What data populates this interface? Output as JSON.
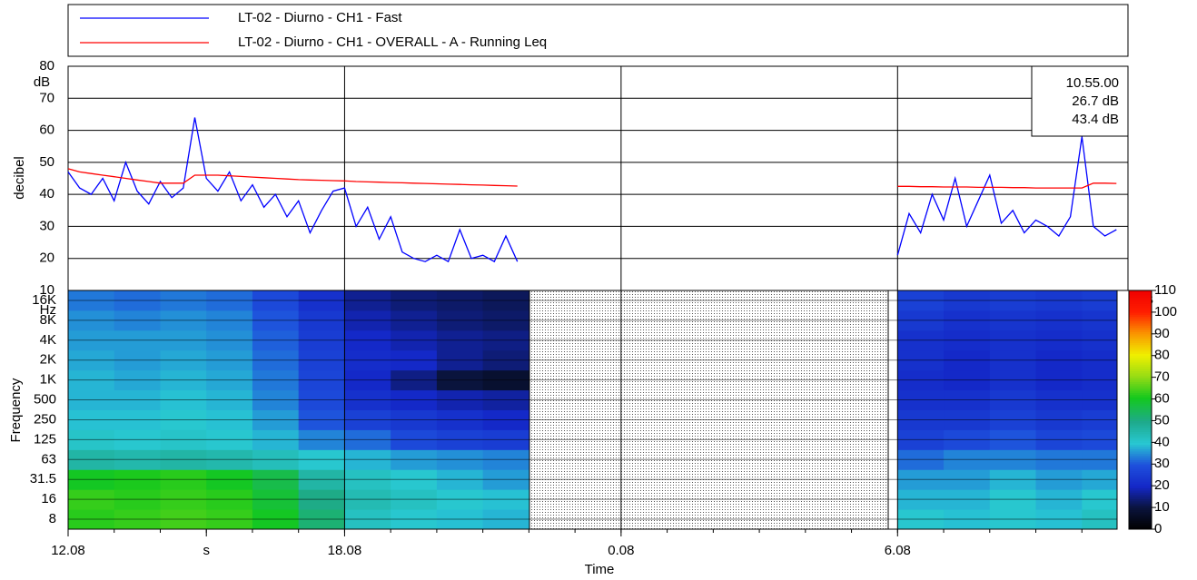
{
  "chart_data": {
    "type": "line",
    "readout": [
      "10.55.00",
      "26.7 dB",
      "43.4 dB"
    ],
    "y_label": "decibel",
    "y_unit": "dB",
    "x_label": "Time",
    "xlim": [
      0,
      23
    ],
    "xticks": [
      {
        "value": 0,
        "label": "12.08"
      },
      {
        "value": 3,
        "label": "s"
      },
      {
        "value": 6,
        "label": "18.08"
      },
      {
        "value": 12,
        "label": "0.08"
      },
      {
        "value": 18,
        "label": "6.08"
      }
    ],
    "ylim": [
      10,
      80
    ],
    "yticks": [
      10,
      20,
      30,
      40,
      50,
      60,
      70,
      80
    ],
    "grid": true,
    "x": [
      0,
      0.25,
      0.5,
      0.75,
      1,
      1.25,
      1.5,
      1.75,
      2,
      2.25,
      2.5,
      2.75,
      3,
      3.25,
      3.5,
      3.75,
      4,
      4.25,
      4.5,
      4.75,
      5,
      5.25,
      5.5,
      5.75,
      6,
      6.25,
      6.5,
      6.75,
      7,
      7.25,
      7.5,
      7.75,
      8,
      8.25,
      8.5,
      8.75,
      9,
      9.25,
      9.5,
      9.75,
      10,
      18,
      18.25,
      18.5,
      18.75,
      19,
      19.25,
      19.5,
      19.75,
      20,
      20.25,
      20.5,
      20.75,
      21,
      21.25,
      21.5,
      21.75,
      22,
      22.25,
      22.5,
      22.75
    ],
    "series": [
      {
        "name": "LT-02 - Diurno - CH1 - Fast",
        "color": "#0000ff",
        "values": [
          47,
          42,
          40,
          45,
          38,
          50,
          41,
          37,
          44,
          39,
          42,
          64,
          45,
          41,
          47,
          38,
          43,
          36,
          40,
          33,
          38,
          28,
          35,
          41,
          42,
          30,
          36,
          26,
          33,
          22,
          20,
          19,
          21,
          19,
          29,
          20,
          21,
          19,
          27,
          19,
          null,
          21,
          34,
          28,
          40,
          32,
          45,
          30,
          38,
          46,
          31,
          35,
          28,
          32,
          30,
          27,
          33,
          58,
          30,
          27,
          29
        ]
      },
      {
        "name": "LT-02 - Diurno - CH1 - OVERALL - A - Running Leq",
        "color": "#ff0000",
        "values": [
          48,
          47,
          46.5,
          46,
          45.5,
          45,
          44.5,
          44,
          43.5,
          43.5,
          43.5,
          46,
          46,
          46,
          45.8,
          45.6,
          45.4,
          45.2,
          45,
          44.8,
          44.6,
          44.5,
          44.4,
          44.3,
          44.2,
          44,
          43.9,
          43.8,
          43.7,
          43.6,
          43.5,
          43.4,
          43.3,
          43.2,
          43.1,
          43,
          42.9,
          42.8,
          42.7,
          42.6,
          null,
          42.5,
          42.5,
          42.4,
          42.4,
          42.3,
          42.3,
          42.3,
          42.2,
          42.2,
          42.2,
          42.1,
          42.1,
          42,
          42,
          42,
          42,
          42,
          43.5,
          43.5,
          43.4
        ]
      }
    ],
    "spectrogram": {
      "y_label": "Frequency",
      "y_unit": "Hz",
      "bands": [
        "8",
        "16",
        "31.5",
        "63",
        "125",
        "250",
        "500",
        "1K",
        "2K",
        "4K",
        "8K",
        "16K"
      ],
      "times": [
        0,
        1,
        2,
        3,
        4,
        5,
        6,
        7,
        8,
        9,
        18,
        19,
        20,
        21,
        22
      ],
      "levels": [
        [
          62,
          63,
          60,
          46,
          41,
          39,
          38,
          38,
          37,
          36,
          35,
          33
        ],
        [
          63,
          62,
          61,
          45,
          40,
          39,
          38,
          37,
          36,
          36,
          34,
          32
        ],
        [
          64,
          63,
          62,
          46,
          41,
          40,
          39,
          38,
          37,
          36,
          35,
          33
        ],
        [
          63,
          62,
          60,
          45,
          40,
          39,
          38,
          37,
          36,
          35,
          34,
          32
        ],
        [
          60,
          58,
          56,
          43,
          38,
          36,
          34,
          33,
          32,
          31,
          30,
          28
        ],
        [
          52,
          50,
          46,
          40,
          34,
          30,
          28,
          27,
          26,
          25,
          24,
          22
        ],
        [
          42,
          44,
          42,
          38,
          32,
          26,
          22,
          20,
          21,
          20,
          18,
          16
        ],
        [
          40,
          42,
          40,
          36,
          28,
          24,
          20,
          15,
          20,
          18,
          16,
          14
        ],
        [
          39,
          40,
          38,
          35,
          26,
          22,
          18,
          10,
          16,
          16,
          14,
          13
        ],
        [
          38,
          39,
          36,
          34,
          25,
          20,
          17,
          8,
          14,
          15,
          13,
          12
        ],
        [
          40,
          38,
          36,
          32,
          26,
          24,
          22,
          21,
          22,
          22,
          24,
          26
        ],
        [
          39,
          38,
          36,
          34,
          28,
          24,
          22,
          20,
          20,
          21,
          22,
          24
        ],
        [
          40,
          40,
          38,
          34,
          30,
          26,
          24,
          22,
          22,
          22,
          23,
          25
        ],
        [
          39,
          38,
          36,
          33,
          27,
          24,
          22,
          20,
          20,
          21,
          22,
          24
        ],
        [
          42,
          40,
          37,
          33,
          28,
          25,
          22,
          21,
          21,
          22,
          23,
          25
        ]
      ],
      "z_unit": "dB",
      "zlim": [
        0,
        110
      ],
      "zticks": [
        0,
        10,
        20,
        30,
        40,
        50,
        60,
        70,
        80,
        90,
        100,
        110
      ]
    }
  }
}
